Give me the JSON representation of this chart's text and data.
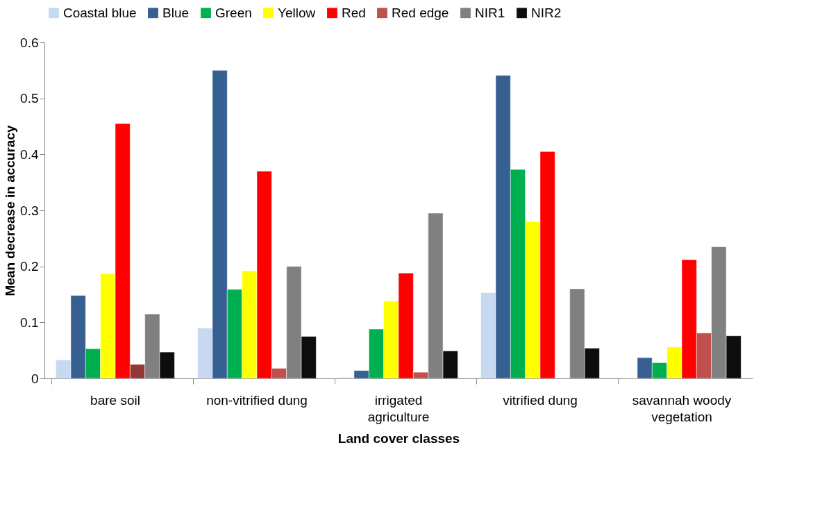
{
  "chart_data": {
    "type": "bar",
    "xlabel": "Land cover classes",
    "ylabel": "Mean decrease in accuracy",
    "categories": [
      "bare soil",
      "non-vitrified dung",
      "irrigated agriculture",
      "vitrified dung",
      "savannah woody vegetation"
    ],
    "series": [
      {
        "name": "Coastal blue",
        "color": "#c6d9f1",
        "values": [
          0.033,
          0.09,
          0.002,
          0.153,
          0.001
        ]
      },
      {
        "name": "Blue",
        "color": "#366092",
        "values": [
          0.148,
          0.55,
          0.014,
          0.541,
          0.037
        ]
      },
      {
        "name": "Green",
        "color": "#00b050",
        "values": [
          0.053,
          0.159,
          0.088,
          0.373,
          0.028
        ]
      },
      {
        "name": "Yellow",
        "color": "#ffff00",
        "values": [
          0.187,
          0.192,
          0.138,
          0.28,
          0.056
        ]
      },
      {
        "name": "Red",
        "color": "#ff0000",
        "values": [
          0.455,
          0.37,
          0.188,
          0.405,
          0.212
        ]
      },
      {
        "name": "Red edge",
        "color": "#c0504d",
        "colors": [
          "#953735",
          "#c0504d",
          "#c0504d",
          "#c0504d",
          "#c0504d"
        ],
        "values": [
          0.025,
          0.018,
          0.011,
          null,
          0.081
        ]
      },
      {
        "name": "NIR1",
        "color": "#808080",
        "values": [
          0.115,
          0.2,
          0.295,
          0.16,
          0.235
        ]
      },
      {
        "name": "NIR2",
        "color": "#0d0d0d",
        "values": [
          0.047,
          0.075,
          0.049,
          0.054,
          0.076
        ]
      }
    ],
    "ylim": [
      0,
      0.6
    ],
    "yticks": [
      {
        "value": 0,
        "label": "0"
      },
      0.1,
      0.2,
      0.3,
      0.4,
      0.5,
      0.6
    ],
    "grid": false,
    "legend": "top"
  }
}
